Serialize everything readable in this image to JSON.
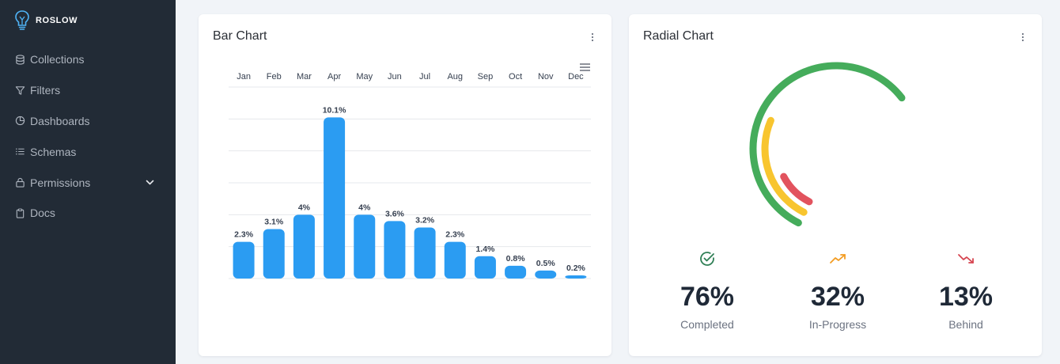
{
  "sidebar": {
    "brand": "ROSLOW",
    "items": [
      {
        "label": "Collections",
        "icon": "database-icon"
      },
      {
        "label": "Filters",
        "icon": "filter-icon"
      },
      {
        "label": "Dashboards",
        "icon": "pie-chart-icon"
      },
      {
        "label": "Schemas",
        "icon": "list-icon"
      },
      {
        "label": "Permissions",
        "icon": "lock-icon"
      },
      {
        "label": "Docs",
        "icon": "clipboard-icon"
      }
    ]
  },
  "bar_card": {
    "title": "Bar Chart"
  },
  "radial_card": {
    "title": "Radial Chart"
  },
  "chart_data": [
    {
      "type": "bar",
      "categories": [
        "Jan",
        "Feb",
        "Mar",
        "Apr",
        "May",
        "Jun",
        "Jul",
        "Aug",
        "Sep",
        "Oct",
        "Nov",
        "Dec"
      ],
      "values": [
        2.3,
        3.1,
        4,
        10.1,
        4,
        3.6,
        3.2,
        2.3,
        1.4,
        0.8,
        0.5,
        0.2
      ],
      "data_labels": [
        "2.3%",
        "3.1%",
        "4%",
        "10.1%",
        "4%",
        "3.6%",
        "3.2%",
        "2.3%",
        "1.4%",
        "0.8%",
        "0.5%",
        "0.2%"
      ],
      "x_axis_position": "top",
      "ylim": [
        0,
        12
      ],
      "grid": true,
      "color": "#2b9cf2"
    },
    {
      "type": "radial_bar",
      "series": [
        {
          "name": "Completed",
          "value": 76,
          "color": "#45ac5b"
        },
        {
          "name": "In-Progress",
          "value": 32,
          "color": "#f8c52f"
        },
        {
          "name": "Behind",
          "value": 13,
          "color": "#e2535e"
        }
      ]
    }
  ],
  "radial_stats": [
    {
      "value": "76%",
      "label": "Completed",
      "icon": "check-circle-icon",
      "color": "#2f7f55"
    },
    {
      "value": "32%",
      "label": "In-Progress",
      "icon": "trending-up-icon",
      "color": "#f39c22"
    },
    {
      "value": "13%",
      "label": "Behind",
      "icon": "trending-down-icon",
      "color": "#d64550"
    }
  ]
}
